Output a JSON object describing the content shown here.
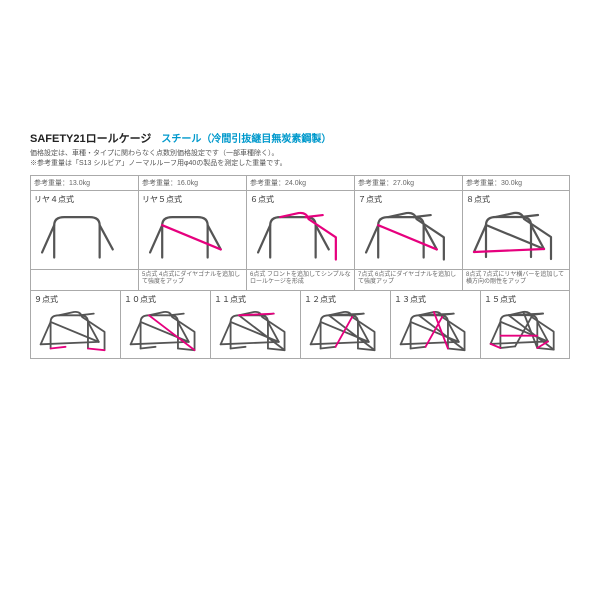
{
  "header": {
    "title": "SAFETY21ロールケージ",
    "subtitle": "スチール（冷間引抜継目無炭素鋼製）",
    "subtitle_color": "#0099cc",
    "desc1": "価格設定は、車種・タイプに関わらなく点数別価格設定です（一部車種除く）。",
    "desc2": "※参考重量は「S13 シルビア」ノーマルルーフ用φ40の製品を測定した重量です。"
  },
  "colors": {
    "bar": "#555555",
    "accent": "#e6007e",
    "stroke_w": 2.2
  },
  "top_row": {
    "weights": [
      "参考重量：13.0kg",
      "参考重量：16.0kg",
      "参考重量：24.0kg",
      "参考重量：27.0kg",
      "参考重量：30.0kg"
    ],
    "cells": [
      {
        "label": "リヤ４点式",
        "type": "r4"
      },
      {
        "label": "リヤ５点式",
        "type": "r5"
      },
      {
        "label": "６点式",
        "type": "p6"
      },
      {
        "label": "７点式",
        "type": "p7"
      },
      {
        "label": "８点式",
        "type": "p8"
      }
    ],
    "notes": [
      "",
      "5点式 4点式にダイヤゴナルを追加して強度をアップ",
      "6点式 フロントを追加してシンプルなロールケージを形成",
      "7点式 6点式にダイヤゴナルを追加して強度アップ",
      "8点式 7点式にリヤ横バーを追加して横方向の剛性をアップ"
    ]
  },
  "bot_row": {
    "cells": [
      {
        "label": "９点式",
        "type": "p9"
      },
      {
        "label": "１０点式",
        "type": "p10"
      },
      {
        "label": "１１点式",
        "type": "p11"
      },
      {
        "label": "１２点式",
        "type": "p12"
      },
      {
        "label": "１３点式",
        "type": "p13"
      },
      {
        "label": "１５点式",
        "type": "p15"
      }
    ]
  }
}
